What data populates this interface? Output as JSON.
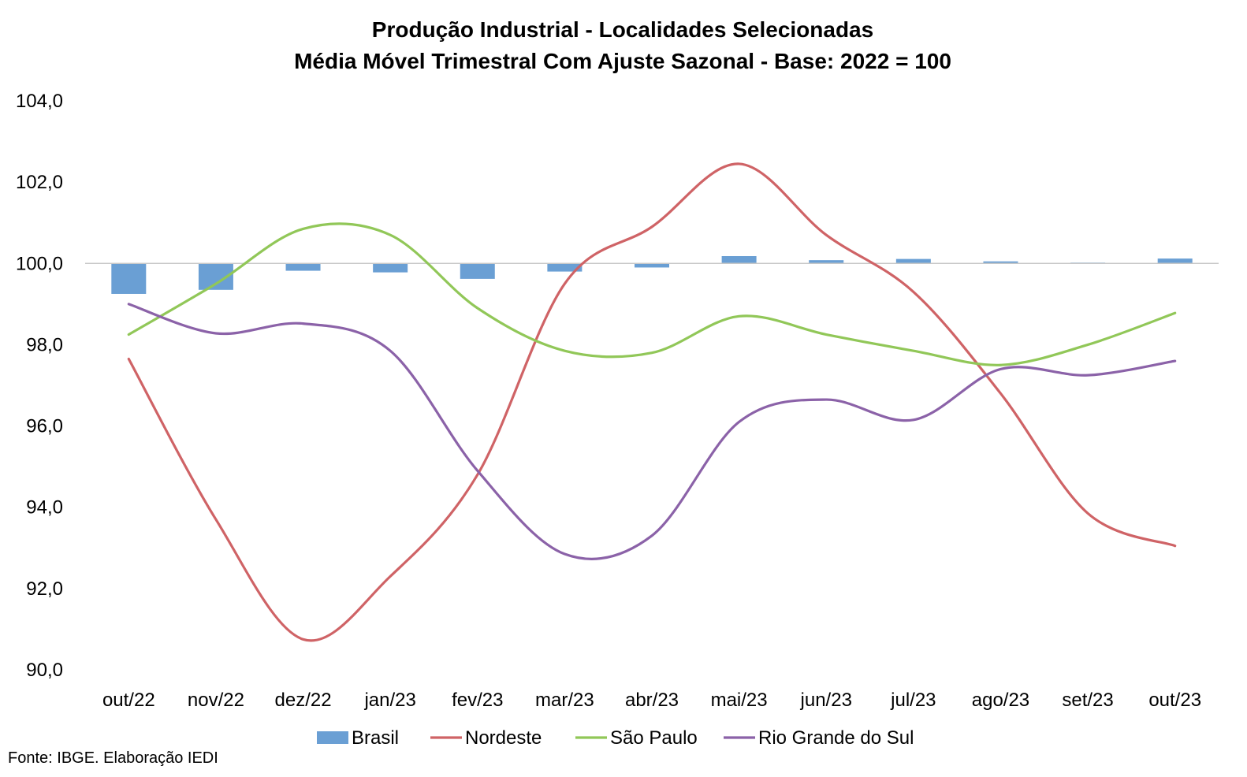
{
  "chart_data": {
    "type": "bar+line",
    "title": "Produção Industrial - Localidades Selecionadas",
    "subtitle": "Média Móvel Trimestral Com Ajuste Sazonal - Base: 2022 = 100",
    "categories": [
      "out/22",
      "nov/22",
      "dez/22",
      "jan/23",
      "fev/23",
      "mar/23",
      "abr/23",
      "mai/23",
      "jun/23",
      "jul/23",
      "ago/23",
      "set/23",
      "out/23"
    ],
    "ylim": [
      90,
      104
    ],
    "yticks": [
      "90,0",
      "92,0",
      "94,0",
      "96,0",
      "98,0",
      "100,0",
      "102,0",
      "104,0"
    ],
    "ytick_values": [
      90,
      92,
      94,
      96,
      98,
      100,
      102,
      104
    ],
    "baseline": 100,
    "grid": false,
    "legend_position": "bottom",
    "series": [
      {
        "name": "Brasil",
        "type": "bar",
        "color": "#6a9fd4",
        "values": [
          99.25,
          99.35,
          99.82,
          99.78,
          99.62,
          99.8,
          99.9,
          100.18,
          100.08,
          100.11,
          100.05,
          100.02,
          100.12
        ]
      },
      {
        "name": "Nordeste",
        "type": "line",
        "color": "#cf6366",
        "values": [
          97.65,
          93.7,
          90.75,
          92.3,
          94.8,
          99.5,
          100.9,
          102.45,
          100.7,
          99.3,
          96.8,
          93.85,
          93.05
        ]
      },
      {
        "name": "São Paulo",
        "type": "line",
        "color": "#91c758",
        "values": [
          98.25,
          99.5,
          100.85,
          100.7,
          98.9,
          97.85,
          97.8,
          98.7,
          98.25,
          97.85,
          97.5,
          98.0,
          98.78
        ]
      },
      {
        "name": "Rio Grande do Sul",
        "type": "line",
        "color": "#8b62a8",
        "values": [
          99.0,
          98.28,
          98.52,
          97.85,
          94.9,
          92.85,
          93.3,
          96.1,
          96.65,
          96.15,
          97.4,
          97.25,
          97.6
        ]
      }
    ]
  },
  "footer": {
    "source": "Fonte: IBGE. Elaboração IEDI"
  }
}
